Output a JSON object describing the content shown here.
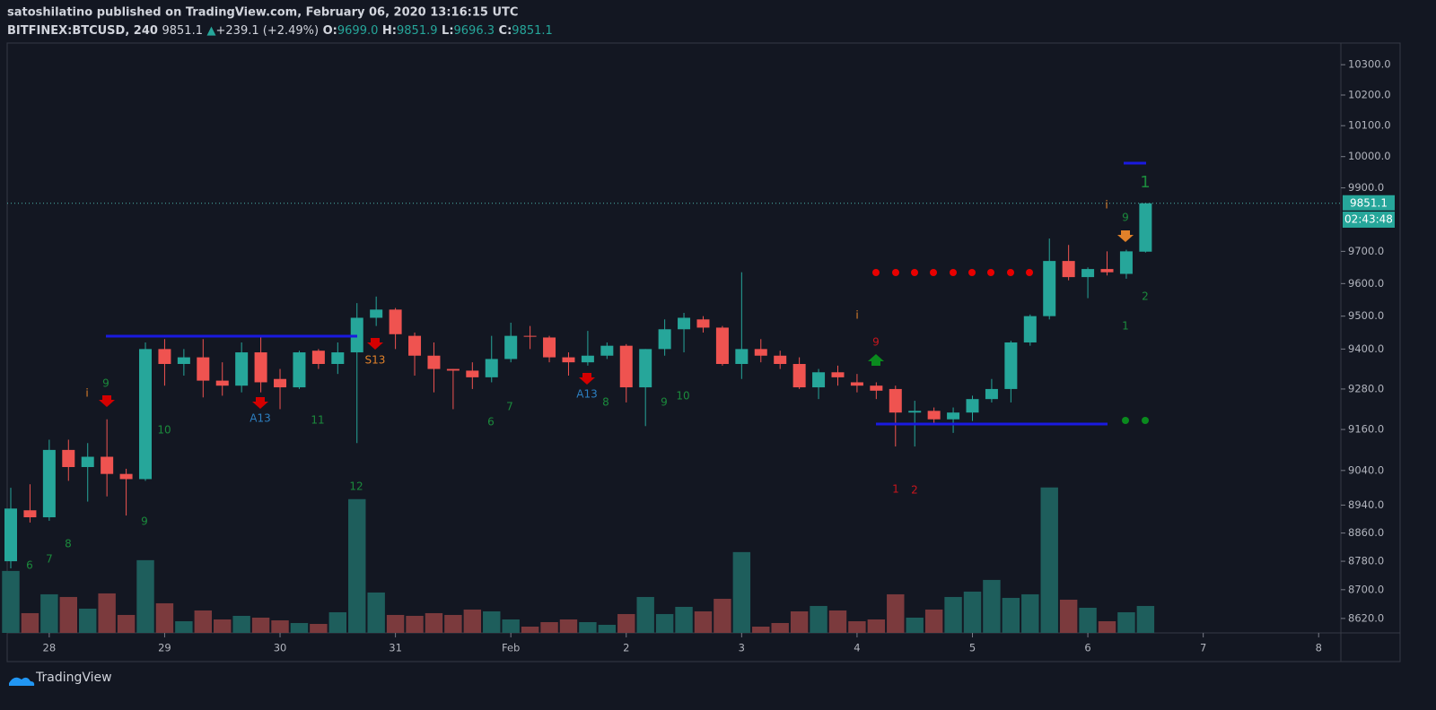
{
  "header": {
    "publisher": "satoshilatino published on TradingView.com, February 06, 2020 13:16:15 UTC",
    "symbol": "BITFINEX:BTCUSD, 240",
    "last": "9851.1",
    "arrow": "▲",
    "change": "+239.1 (+2.49%)",
    "o_label": "O:",
    "o": "9699.0",
    "h_label": "H:",
    "h": "9851.9",
    "l_label": "L:",
    "l": "9696.3",
    "c_label": "C:",
    "c": "9851.1"
  },
  "chart_data": {
    "type": "candlestick",
    "categories": [
      null,
      null,
      "28",
      null,
      null,
      null,
      null,
      null,
      "29",
      null,
      null,
      null,
      null,
      null,
      "30",
      null,
      null,
      null,
      null,
      null,
      "31",
      null,
      null,
      null,
      null,
      null,
      "Feb",
      null,
      null,
      null,
      null,
      null,
      "2",
      null,
      null,
      null,
      null,
      null,
      "3",
      null,
      null,
      null,
      null,
      null,
      "4",
      null,
      null,
      null,
      null,
      null,
      "5",
      null,
      null,
      null,
      null,
      null,
      "6",
      null,
      null,
      null,
      null,
      null,
      "7",
      null,
      null,
      null,
      null,
      null,
      "8"
    ],
    "open": [
      8780,
      8925,
      8905,
      9100,
      9050,
      9080,
      9030,
      9015,
      9400,
      9355,
      9375,
      9305,
      9290,
      9390,
      9310,
      9285,
      9395,
      9355,
      9390,
      9495,
      9520,
      9440,
      9380,
      9340,
      9335,
      9315,
      9370,
      9440,
      9435,
      9375,
      9360,
      9380,
      9410,
      9285,
      9400,
      9460,
      9490,
      9465,
      9355,
      9400,
      9380,
      9355,
      9285,
      9330,
      9300,
      9290,
      9280,
      9210,
      9215,
      9190,
      9210,
      9250,
      9280,
      9420,
      9500,
      9670,
      9620,
      9645,
      9630,
      9699.0,
      null,
      null,
      null,
      null,
      null,
      null,
      null,
      null,
      null
    ],
    "high": [
      8990,
      9000,
      9130,
      9130,
      9120,
      9190,
      9045,
      9420,
      9430,
      9400,
      9430,
      9360,
      9420,
      9435,
      9340,
      9395,
      9400,
      9420,
      9540,
      9560,
      9525,
      9450,
      9420,
      9340,
      9360,
      9440,
      9480,
      9470,
      9440,
      9390,
      9455,
      9420,
      9415,
      9400,
      9490,
      9510,
      9500,
      9470,
      9635,
      9430,
      9395,
      9375,
      9340,
      9350,
      9325,
      9300,
      9290,
      9245,
      9225,
      9225,
      9260,
      9310,
      9425,
      9505,
      9740,
      9720,
      9650,
      9700,
      9705,
      9851.9,
      null,
      null,
      null,
      null,
      null,
      null,
      null,
      null,
      null
    ],
    "low": [
      8760,
      8890,
      8895,
      9010,
      8950,
      8965,
      8910,
      9010,
      9290,
      9320,
      9255,
      9260,
      9270,
      9270,
      9220,
      9280,
      9340,
      9325,
      9120,
      9470,
      9400,
      9320,
      9270,
      9220,
      9280,
      9300,
      9360,
      9400,
      9360,
      9320,
      9350,
      9370,
      9240,
      9170,
      9380,
      9390,
      9450,
      9350,
      9310,
      9360,
      9340,
      9280,
      9250,
      9290,
      9270,
      9250,
      9110,
      9110,
      9180,
      9150,
      9185,
      9240,
      9240,
      9410,
      9490,
      9610,
      9555,
      9625,
      9615,
      9696.3,
      null,
      null,
      null,
      null,
      null,
      null,
      null,
      null,
      null
    ],
    "close": [
      8930,
      8905,
      9100,
      9050,
      9080,
      9030,
      9015,
      9400,
      9355,
      9375,
      9305,
      9290,
      9390,
      9300,
      9285,
      9390,
      9355,
      9390,
      9495,
      9520,
      9445,
      9380,
      9340,
      9335,
      9315,
      9370,
      9440,
      9438,
      9375,
      9360,
      9380,
      9410,
      9285,
      9400,
      9460,
      9495,
      9465,
      9355,
      9400,
      9380,
      9355,
      9285,
      9330,
      9315,
      9290,
      9275,
      9210,
      9215,
      9190,
      9210,
      9250,
      9280,
      9420,
      9500,
      9670,
      9620,
      9645,
      9635,
      9700,
      9851.1,
      null,
      null,
      null,
      null,
      null,
      null,
      null,
      null,
      null
    ],
    "volume": [
      69,
      22,
      43,
      40,
      27,
      44,
      20,
      81,
      33,
      13,
      25,
      15,
      19,
      17,
      14,
      11,
      10,
      23,
      149,
      45,
      20,
      19,
      22,
      20,
      26,
      24,
      15,
      7,
      12,
      15,
      12,
      9,
      21,
      40,
      21,
      29,
      24,
      38,
      90,
      7,
      11,
      24,
      30,
      25,
      13,
      15,
      43,
      17,
      26,
      40,
      46,
      59,
      39,
      43,
      162,
      37,
      28,
      13,
      23,
      30,
      null,
      null,
      null,
      null,
      null,
      null,
      null,
      null,
      null
    ],
    "volume_ylim": [
      0,
      657
    ],
    "up_color": "#26a69a",
    "down_color": "#ef5350",
    "volume_up_color": "#1e5e5c",
    "volume_down_color": "#7b3a3d",
    "log_scale": true,
    "grid": false,
    "ylim": [
      8580,
      10372
    ],
    "yticks": [
      {
        "value": 10300,
        "label": "10300.0"
      },
      {
        "value": 10200,
        "label": "10200.0"
      },
      {
        "value": 10100,
        "label": "10100.0"
      },
      {
        "value": 10000,
        "label": "10000.0"
      },
      {
        "value": 9900,
        "label": "9900.0"
      },
      {
        "value": 9700,
        "label": "9700.0"
      },
      {
        "value": 9600,
        "label": "9600.0"
      },
      {
        "value": 9500,
        "label": "9500.0"
      },
      {
        "value": 9400,
        "label": "9400.0"
      },
      {
        "value": 9280,
        "label": "9280.0"
      },
      {
        "value": 9160,
        "label": "9160.0"
      },
      {
        "value": 9040,
        "label": "9040.0"
      },
      {
        "value": 8940,
        "label": "8940.0"
      },
      {
        "value": 8860,
        "label": "8860.0"
      },
      {
        "value": 8780,
        "label": "8780.0"
      },
      {
        "value": 8700,
        "label": "8700.0"
      },
      {
        "value": 8620,
        "label": "8620.0"
      }
    ],
    "price_label": "9851.1",
    "countdown": "02:43:48",
    "annotations": [
      {
        "text": "6",
        "color": "#1b8a3c"
      },
      {
        "text": "7",
        "color": "#1b8a3c"
      },
      {
        "text": "8",
        "color": "#1b8a3c"
      },
      {
        "text": "9",
        "color": "#1b8a3c"
      },
      {
        "text": "i",
        "color": "#e0812a"
      },
      {
        "text": "10",
        "color": "#1b8a3c"
      },
      {
        "text": "9",
        "color": "#1b8a3c"
      },
      {
        "text": "A13",
        "color": "#2d7fc1"
      },
      {
        "text": "11",
        "color": "#1b8a3c"
      },
      {
        "text": "12",
        "color": "#1b8a3c"
      },
      {
        "text": "S13",
        "color": "#e0812a"
      },
      {
        "text": "6",
        "color": "#1b8a3c"
      },
      {
        "text": "7",
        "color": "#1b8a3c"
      },
      {
        "text": "A13",
        "color": "#2d7fc1"
      },
      {
        "text": "8",
        "color": "#1b8a3c"
      },
      {
        "text": "9",
        "color": "#1b8a3c"
      },
      {
        "text": "10",
        "color": "#1b8a3c"
      },
      {
        "text": "i",
        "color": "#e0812a"
      },
      {
        "text": "9",
        "color": "#c8161d"
      },
      {
        "text": "1",
        "color": "#c8161d"
      },
      {
        "text": "2",
        "color": "#c8161d"
      },
      {
        "text": "i",
        "color": "#e0812a"
      },
      {
        "text": "9",
        "color": "#1b8a3c"
      },
      {
        "text": "1",
        "color": "#1b8a3c"
      },
      {
        "text": "2",
        "color": "#1b8a3c"
      },
      {
        "text": "1",
        "color": "#1b8a3c"
      }
    ]
  },
  "footer": {
    "brand": "TradingView"
  }
}
